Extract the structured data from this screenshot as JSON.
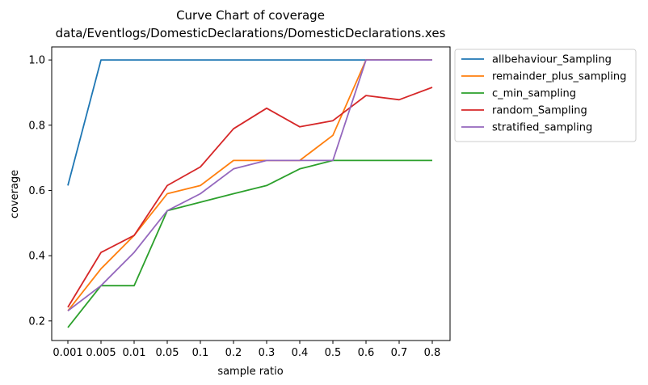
{
  "chart_data": {
    "type": "line",
    "title_line1": "Curve Chart of coverage",
    "title_line2": "data/Eventlogs/DomesticDeclarations/DomesticDeclarations.xes",
    "xlabel": "sample ratio",
    "ylabel": "coverage",
    "categories": [
      "0.001",
      "0.005",
      "0.01",
      "0.05",
      "0.1",
      "0.2",
      "0.3",
      "0.4",
      "0.5",
      "0.6",
      "0.7",
      "0.8"
    ],
    "ylim": [
      0.14,
      1.04
    ],
    "yticks": [
      "0.2",
      "0.4",
      "0.6",
      "0.8",
      "1.0"
    ],
    "grid": false,
    "legend_position": "outside-top-right",
    "series": [
      {
        "name": "allbehaviour_Sampling",
        "color": "#1f77b4",
        "values": [
          0.615,
          1.0,
          1.0,
          1.0,
          1.0,
          1.0,
          1.0,
          1.0,
          1.0,
          1.0,
          1.0,
          1.0
        ]
      },
      {
        "name": "remainder_plus_sampling",
        "color": "#ff7f0e",
        "values": [
          0.231,
          0.36,
          0.462,
          0.59,
          0.615,
          0.692,
          0.692,
          0.692,
          0.769,
          1.0,
          1.0,
          1.0
        ]
      },
      {
        "name": "c_min_sampling",
        "color": "#2ca02c",
        "values": [
          0.18,
          0.308,
          0.308,
          0.538,
          0.564,
          0.59,
          0.615,
          0.666,
          0.692,
          0.692,
          0.692,
          0.692
        ]
      },
      {
        "name": "random_Sampling",
        "color": "#d62728",
        "values": [
          0.242,
          0.41,
          0.462,
          0.615,
          0.672,
          0.789,
          0.852,
          0.795,
          0.814,
          0.891,
          0.878,
          0.916
        ]
      },
      {
        "name": "stratified_sampling",
        "color": "#9467bd",
        "values": [
          0.231,
          0.308,
          0.41,
          0.538,
          0.59,
          0.666,
          0.692,
          0.692,
          0.692,
          1.0,
          1.0,
          1.0
        ]
      }
    ]
  }
}
